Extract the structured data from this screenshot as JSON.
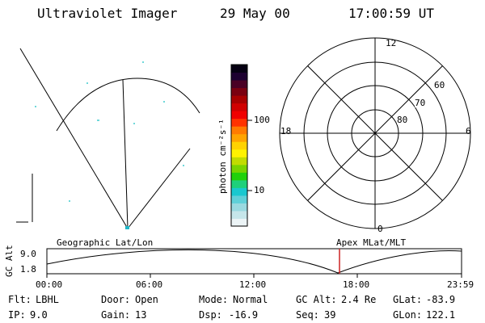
{
  "header": {
    "instrument": "Ultraviolet Imager",
    "date": "29 May 00",
    "time": "17:00:59 UT"
  },
  "geo_panel": {
    "label": "Geographic Lat/Lon"
  },
  "colorbar": {
    "unit_label": "photon cm⁻²s⁻¹",
    "ticks": [
      "100",
      "10"
    ],
    "scale": "log",
    "colors": [
      "#ecf4f6",
      "#c6e6ea",
      "#9ad9e0",
      "#5fd0d8",
      "#19c8cf",
      "#1fd07b",
      "#21d10b",
      "#79d400",
      "#c1dc00",
      "#fff200",
      "#ffd200",
      "#ffa400",
      "#ff7b00",
      "#ff3300",
      "#f00000",
      "#d00000",
      "#a80000",
      "#7a0010",
      "#4a0025",
      "#1c0030",
      "#050012"
    ]
  },
  "polar_panel": {
    "label": "Apex MLat/MLT",
    "mlt_labels": [
      "12",
      "18",
      "6",
      "0"
    ],
    "mlat_labels": [
      "60",
      "70",
      "80"
    ]
  },
  "altitude_plot": {
    "axis_label": "GC Alt",
    "y_ticks": [
      "9.0",
      "1.8"
    ],
    "x_ticks": [
      "00:00",
      "06:00",
      "12:00",
      "18:00",
      "23:59"
    ],
    "current_time_marker_color": "#cc2222"
  },
  "info": {
    "filter_label": "Flt:",
    "filter_value": "LBHL",
    "door_label": "Door:",
    "door_value": "Open",
    "mode_label": "Mode:",
    "mode_value": "Normal",
    "gcalt_label": "GC Alt:",
    "gcalt_value": "2.4 Re",
    "glat_label": "GLat:",
    "glat_value": "-83.9",
    "ip_label": "IP:",
    "ip_value": "9.0",
    "gain_label": "Gain:",
    "gain_value": "13",
    "dsp_label": "Dsp:",
    "dsp_value": "-16.9",
    "seq_label": "Seq:",
    "seq_value": "39",
    "glon_label": "GLon:",
    "glon_value": "122.1"
  }
}
